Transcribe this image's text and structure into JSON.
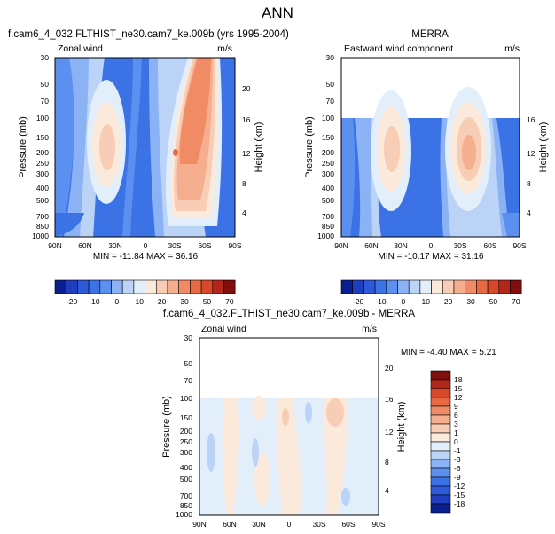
{
  "page": {
    "title": "ANN"
  },
  "chart_data": [
    {
      "type": "heatmap",
      "title": "f.cam6_4_032.FLTHIST_ne30.cam7_ke.009b (yrs 1995-2004)",
      "left_label": "Zonal wind",
      "right_label": "m/s",
      "ylabel": "Pressure (mb)",
      "ylabel_right": "Height (km)",
      "stats": "MIN = -11.84  MAX = 36.16",
      "x_ticks": [
        "90N",
        "60N",
        "30N",
        "0",
        "30S",
        "60S",
        "90S"
      ],
      "y_ticks": [
        "30",
        "50",
        "70",
        "100",
        "150",
        "200",
        "250",
        "300",
        "400",
        "500",
        "700",
        "850",
        "1000"
      ],
      "height_ticks": [
        "4",
        "8",
        "12",
        "16",
        "20"
      ],
      "jets": [
        {
          "lat": 35,
          "p": 200,
          "value": 30
        },
        {
          "lat": -45,
          "p": 200,
          "value": 36
        }
      ]
    },
    {
      "type": "heatmap",
      "title": "MERRA",
      "left_label": "Eastward wind component",
      "right_label": "m/s",
      "ylabel": "Pressure (mb)",
      "ylabel_right": "Height (km)",
      "stats": "MIN = -10.17  MAX = 31.16",
      "x_ticks": [
        "90N",
        "60N",
        "30N",
        "0",
        "30S",
        "60S",
        "90S"
      ],
      "y_ticks": [
        "30",
        "50",
        "70",
        "100",
        "150",
        "200",
        "250",
        "300",
        "400",
        "500",
        "700",
        "850",
        "1000"
      ],
      "height_ticks": [
        "4",
        "8",
        "12",
        "16"
      ],
      "jets": [
        {
          "lat": 32,
          "p": 200,
          "value": 30
        },
        {
          "lat": -42,
          "p": 200,
          "value": 31
        }
      ]
    },
    {
      "type": "heatmap",
      "title": "f.cam6_4_032.FLTHIST_ne30.cam7_ke.009b - MERRA",
      "left_label": "Zonal wind",
      "right_label": "m/s",
      "ylabel": "Pressure (mb)",
      "ylabel_right": "Height (km)",
      "stats": "MIN = -4.40  MAX =  5.21",
      "x_ticks": [
        "90N",
        "60N",
        "30N",
        "0",
        "30S",
        "60S",
        "90S"
      ],
      "y_ticks": [
        "30",
        "50",
        "70",
        "100",
        "150",
        "200",
        "250",
        "300",
        "400",
        "500",
        "700",
        "850",
        "1000"
      ],
      "height_ticks": [
        "4",
        "8",
        "12",
        "16",
        "20"
      ]
    }
  ],
  "colorbar_top": {
    "labels": [
      "-20",
      "-10",
      "0",
      "10",
      "20",
      "30",
      "50",
      "70"
    ],
    "colors": [
      "#0a1f8f",
      "#1f3dbf",
      "#2e59d9",
      "#3b73e6",
      "#5b8ff0",
      "#8bb2f5",
      "#bcd3f8",
      "#e3eefb",
      "#fbe9dc",
      "#f8cdb5",
      "#f5ae8e",
      "#f08b66",
      "#e86a45",
      "#d9482b",
      "#b3261a",
      "#7f0e0c"
    ]
  },
  "colorbar_diff": {
    "labels": [
      "18",
      "15",
      "12",
      "9",
      "6",
      "3",
      "1",
      "0",
      "-1",
      "-3",
      "-6",
      "-9",
      "-12",
      "-15",
      "-18"
    ],
    "colors": [
      "#7f0e0c",
      "#b3261a",
      "#d9482b",
      "#e86a45",
      "#f08b66",
      "#f5ae8e",
      "#f8cdb5",
      "#fbe9dc",
      "#e3eefb",
      "#bcd3f8",
      "#8bb2f5",
      "#5b8ff0",
      "#3b73e6",
      "#2e59d9",
      "#1f3dbf",
      "#0a1f8f"
    ]
  }
}
